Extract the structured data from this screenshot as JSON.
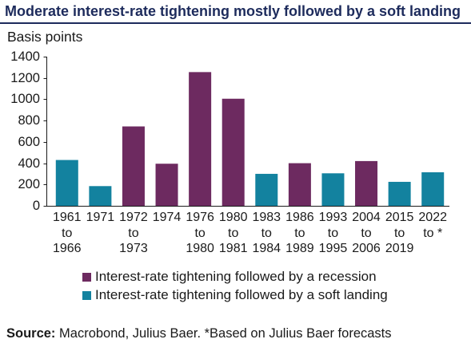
{
  "colors": {
    "brand_navy": "#1d2b5c",
    "text": "#1a1a1a"
  },
  "chart_data": {
    "type": "bar",
    "title": "Moderate interest-rate tightening mostly followed by a soft landing",
    "ylabel": "Basis points",
    "ylim": [
      0,
      1400
    ],
    "yticks": [
      0,
      200,
      400,
      600,
      800,
      1000,
      1200,
      1400
    ],
    "grid": false,
    "legend": "bottom",
    "categories": [
      "1961\nto\n1966",
      "1971",
      "1972\nto\n1973",
      "1974",
      "1976\nto\n1980",
      "1980\nto\n1981",
      "1983\nto\n1984",
      "1986\nto\n1989",
      "1993\nto\n1995",
      "2004\nto\n2006",
      "2015\nto\n2019",
      "2022\nto *"
    ],
    "series": [
      {
        "name": "Interest-rate tightening followed by a recession",
        "color": "#6d2a60",
        "values": [
          null,
          null,
          745,
          395,
          1255,
          1005,
          null,
          400,
          null,
          420,
          null,
          null
        ]
      },
      {
        "name": "Interest-rate tightening followed by a soft landing",
        "color": "#13829f",
        "values": [
          430,
          185,
          null,
          null,
          null,
          null,
          300,
          null,
          305,
          null,
          225,
          315
        ]
      }
    ]
  },
  "source": {
    "label": "Source:",
    "text": "Macrobond, Julius Baer. *Based on Julius Baer forecasts"
  }
}
